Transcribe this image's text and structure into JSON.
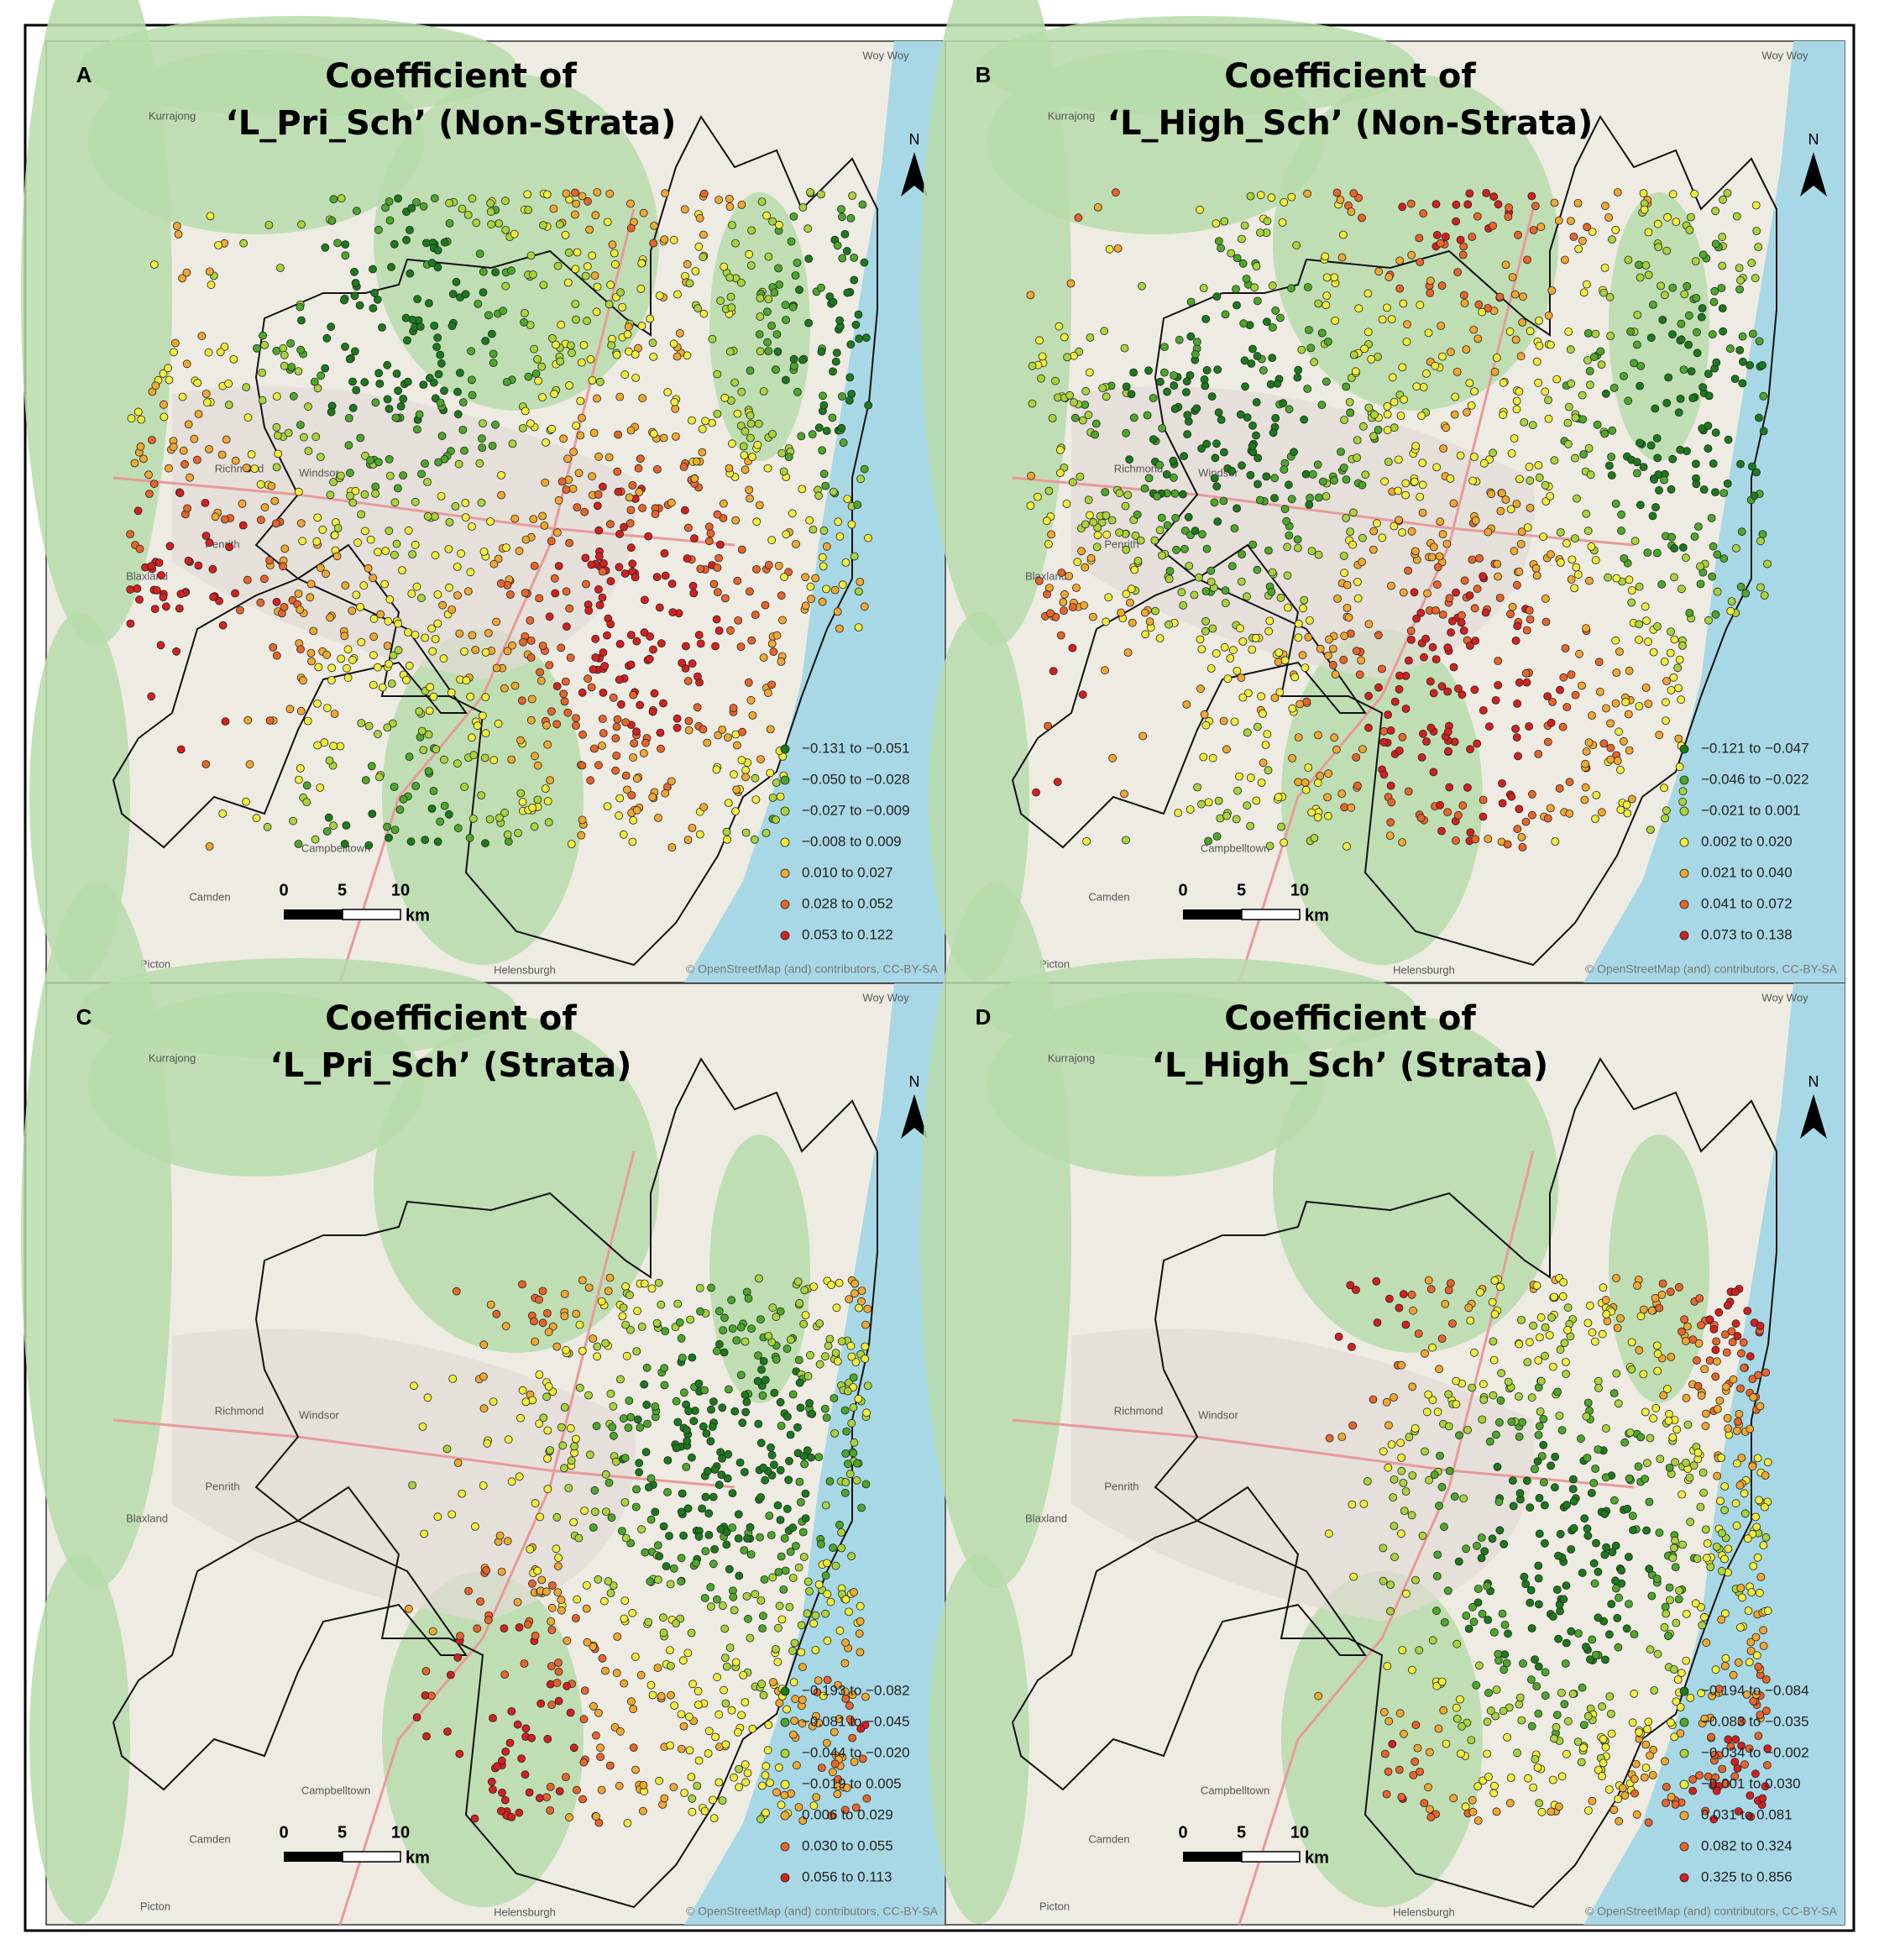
{
  "figure": {
    "panels": [
      {
        "letter": "A",
        "title_lines": [
          "Coefficient of",
          "‘L_Pri_Sch’ (Non-Strata)"
        ],
        "legend": [
          "−0.131 to −0.051",
          "−0.050 to −0.028",
          "−0.027 to −0.009",
          "−0.008 to 0.009",
          "0.010 to 0.027",
          "0.028 to 0.052",
          "0.053 to 0.122"
        ]
      },
      {
        "letter": "B",
        "title_lines": [
          "Coefficient of",
          "‘L_High_Sch’ (Non-Strata)"
        ],
        "legend": [
          "−0.121 to −0.047",
          "−0.046 to −0.022",
          "−0.021 to 0.001",
          "0.002 to 0.020",
          "0.021 to 0.040",
          "0.041 to 0.072",
          "0.073 to 0.138"
        ]
      },
      {
        "letter": "C",
        "title_lines": [
          "Coefficient of",
          "‘L_Pri_Sch’ (Strata)"
        ],
        "legend": [
          "−0.193 to −0.082",
          "−0.081 to −0.045",
          "−0.044 to −0.020",
          "−0.019 to 0.005",
          "0.006 to 0.029",
          "0.030 to 0.055",
          "0.056 to 0.113"
        ]
      },
      {
        "letter": "D",
        "title_lines": [
          "Coefficient of",
          "‘L_High_Sch’ (Strata)"
        ],
        "legend": [
          "−0.194 to −0.084",
          "−0.083 to −0.035",
          "−0.034 to −0.002",
          "−0.001 to 0.030",
          "0.031 to 0.081",
          "0.082 to 0.324",
          "0.325 to 0.856"
        ]
      }
    ],
    "legend_colors": [
      "#1b7a1b",
      "#4da82a",
      "#a9d43a",
      "#f2ee3a",
      "#f0a830",
      "#e8652a",
      "#d4201e"
    ],
    "scale_bar": {
      "ticks": [
        "0",
        "5",
        "10"
      ],
      "unit": "km"
    },
    "north_label": "N",
    "attribution": "© OpenStreetMap (and) contributors, CC-BY-SA",
    "map_labels": [
      "Kurrajong",
      "Richmond",
      "Windsor",
      "Penrith",
      "Blaxland",
      "Camden",
      "Campbelltown",
      "Helensburgh",
      "Picton",
      "Woy Woy"
    ]
  }
}
